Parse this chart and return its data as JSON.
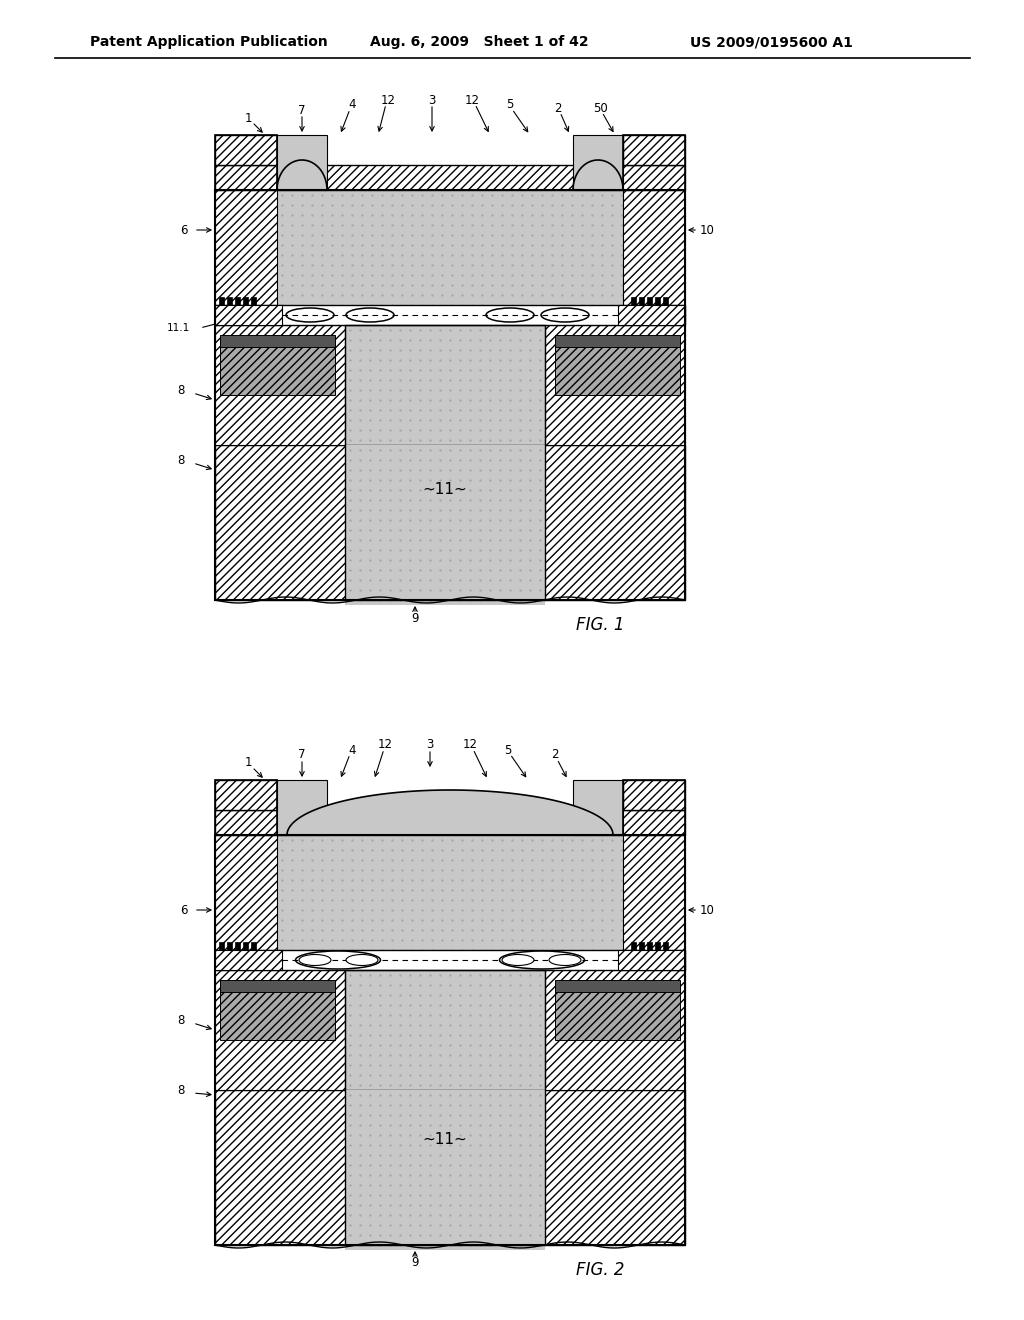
{
  "title_line1": "Patent Application Publication",
  "title_line2": "Aug. 6, 2009   Sheet 1 of 42",
  "title_line3": "US 2009/0195600 A1",
  "fig1_label": "FIG. 1",
  "fig2_label": "FIG. 2",
  "bg_color": "#ffffff"
}
